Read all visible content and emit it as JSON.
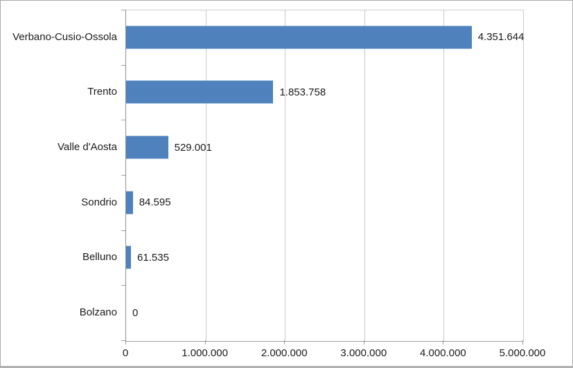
{
  "chart_data": {
    "type": "bar",
    "orientation": "horizontal",
    "title": "",
    "xlabel": "",
    "ylabel": "",
    "legend": "none",
    "grid": "vertical-major",
    "categories": [
      "Verbano-Cusio-Ossola",
      "Trento",
      "Valle d'Aosta",
      "Sondrio",
      "Belluno",
      "Bolzano"
    ],
    "values": [
      4351644,
      1853758,
      529001,
      84595,
      61535,
      0
    ],
    "value_labels": [
      "4.351.644",
      "1.853.758",
      "529.001",
      "84.595",
      "61.535",
      "0"
    ],
    "x_ticks": [
      0,
      1000000,
      2000000,
      3000000,
      4000000,
      5000000
    ],
    "x_tick_labels": [
      "0",
      "1.000.000",
      "2.000.000",
      "3.000.000",
      "4.000.000",
      "5.000.000"
    ],
    "xlim": [
      0,
      5000000
    ],
    "colors": {
      "bar_fill": "#4F81BD",
      "gridline": "#C9C9C9",
      "axis_line": "#9C9C9C",
      "text": "#1A1A1A",
      "frame_border": "#A9A9A9",
      "background": "#FFFFFF"
    }
  }
}
